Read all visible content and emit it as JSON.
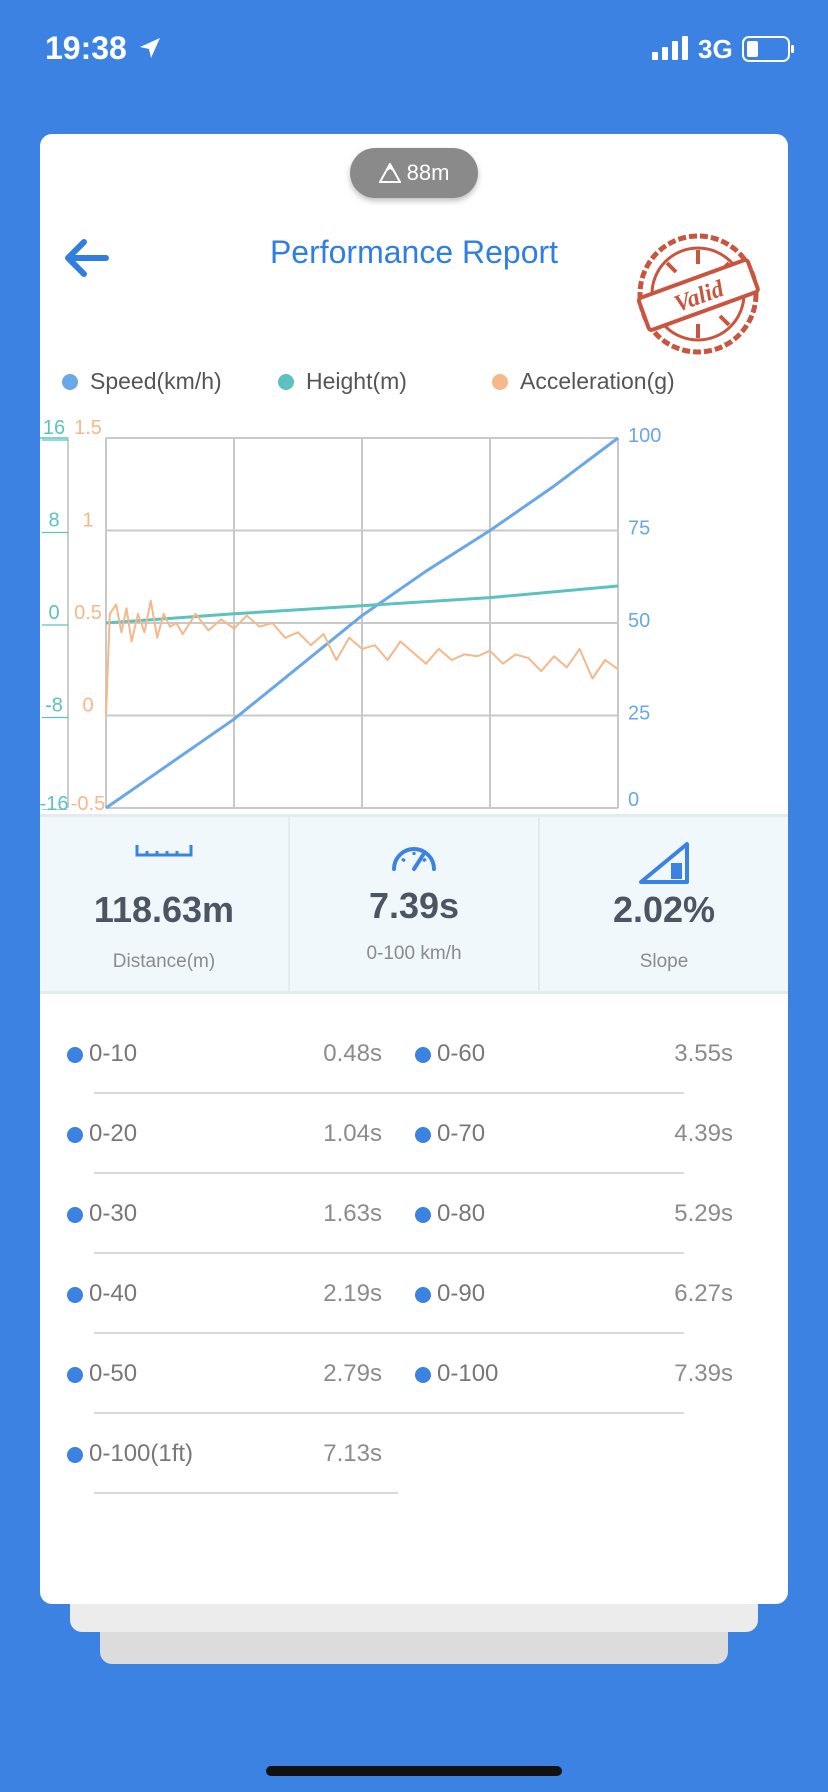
{
  "status": {
    "time": "19:38",
    "network": "3G"
  },
  "altitude": "88m",
  "title": "Performance Report",
  "stamp_text": "Valid",
  "legend": [
    {
      "label": "Speed(km/h)",
      "color": "#6aa7e6"
    },
    {
      "label": "Height(m)",
      "color": "#5bc2c0"
    },
    {
      "label": "Acceleration(g)",
      "color": "#f5b88a"
    }
  ],
  "chart_data": {
    "type": "line",
    "axes": {
      "height_ticks": [
        "16",
        "8",
        "0",
        "-8",
        "-16"
      ],
      "acceleration_ticks": [
        "1.5",
        "1",
        "0.5",
        "0",
        "-0.5"
      ],
      "speed_ticks": [
        "100",
        "75",
        "50",
        "25",
        "0"
      ],
      "height_range": [
        -16,
        16
      ],
      "acceleration_range": [
        -0.5,
        1.5
      ],
      "speed_range": [
        0,
        100
      ]
    },
    "grid": true,
    "x_range": [
      0,
      4
    ],
    "series": [
      {
        "name": "Speed(km/h)",
        "axis": "speed",
        "color": "#6aa7e6",
        "x": [
          0,
          0.5,
          1,
          1.5,
          2,
          2.5,
          3,
          3.5,
          4
        ],
        "values": [
          0,
          12,
          24,
          38,
          52,
          64,
          75,
          87,
          100
        ]
      },
      {
        "name": "Height(m)",
        "axis": "height",
        "color": "#5bc2c0",
        "x": [
          0,
          1,
          2,
          3,
          4
        ],
        "values": [
          0,
          0.8,
          1.5,
          2.2,
          3.2
        ]
      },
      {
        "name": "Acceleration(g)",
        "axis": "acceleration",
        "color": "#f5b88a",
        "x": [
          0,
          0.03,
          0.08,
          0.12,
          0.16,
          0.2,
          0.25,
          0.3,
          0.35,
          0.4,
          0.45,
          0.5,
          0.55,
          0.6,
          0.7,
          0.8,
          0.9,
          1.0,
          1.1,
          1.2,
          1.3,
          1.4,
          1.5,
          1.6,
          1.7,
          1.8,
          1.9,
          2.0,
          2.1,
          2.2,
          2.3,
          2.4,
          2.5,
          2.6,
          2.7,
          2.8,
          2.9,
          3.0,
          3.1,
          3.2,
          3.3,
          3.4,
          3.5,
          3.6,
          3.7,
          3.8,
          3.9,
          4.0
        ],
        "values": [
          0,
          0.55,
          0.6,
          0.45,
          0.58,
          0.4,
          0.55,
          0.45,
          0.62,
          0.42,
          0.55,
          0.48,
          0.5,
          0.44,
          0.55,
          0.46,
          0.52,
          0.47,
          0.54,
          0.48,
          0.5,
          0.42,
          0.45,
          0.38,
          0.44,
          0.3,
          0.42,
          0.36,
          0.38,
          0.3,
          0.4,
          0.34,
          0.28,
          0.36,
          0.3,
          0.33,
          0.32,
          0.35,
          0.28,
          0.33,
          0.31,
          0.24,
          0.32,
          0.26,
          0.36,
          0.2,
          0.3,
          0.25
        ]
      }
    ]
  },
  "stats": [
    {
      "icon": "ruler-icon",
      "value": "118.63m",
      "label": "Distance(m)"
    },
    {
      "icon": "speedometer-icon",
      "value": "7.39s",
      "label": "0-100 km/h"
    },
    {
      "icon": "slope-icon",
      "value": "2.02%",
      "label": "Slope"
    }
  ],
  "splits": [
    {
      "label": "0-10",
      "time": "0.48s"
    },
    {
      "label": "0-60",
      "time": "3.55s"
    },
    {
      "label": "0-20",
      "time": "1.04s"
    },
    {
      "label": "0-70",
      "time": "4.39s"
    },
    {
      "label": "0-30",
      "time": "1.63s"
    },
    {
      "label": "0-80",
      "time": "5.29s"
    },
    {
      "label": "0-40",
      "time": "2.19s"
    },
    {
      "label": "0-90",
      "time": "6.27s"
    },
    {
      "label": "0-50",
      "time": "2.79s"
    },
    {
      "label": "0-100",
      "time": "7.39s"
    },
    {
      "label": "0-100(1ft)",
      "time": "7.13s"
    }
  ]
}
